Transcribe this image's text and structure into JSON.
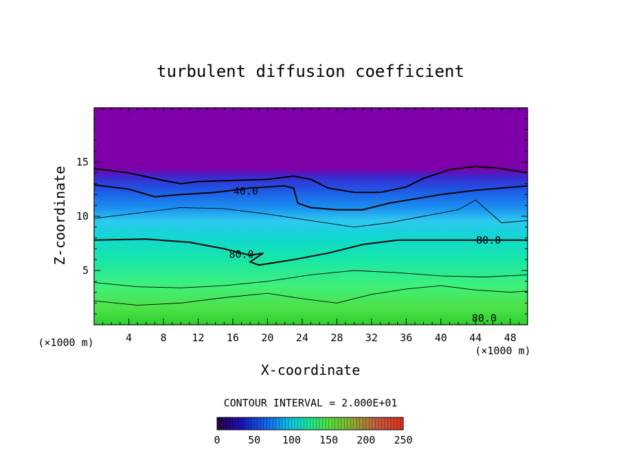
{
  "chart_data": {
    "type": "heatmap",
    "title": "turbulent diffusion coefficient",
    "xlabel": "X-coordinate",
    "ylabel": "Z-coordinate",
    "x_unit_left": "(×1000 m)",
    "x_unit_right": "(×1000 m)",
    "xlim": [
      0,
      50
    ],
    "ylim": [
      0,
      20
    ],
    "x_ticks": [
      4,
      8,
      12,
      16,
      20,
      24,
      28,
      32,
      36,
      40,
      44,
      48
    ],
    "y_ticks": [
      5,
      10,
      15
    ],
    "contour_interval_text": "CONTOUR INTERVAL = 2.000E+01",
    "contour_interval": 20,
    "contour_labels": [
      {
        "text": "40.0",
        "x": 17.5,
        "z": 12.3
      },
      {
        "text": "80.0",
        "x": 17.0,
        "z": 6.5
      },
      {
        "text": "80.0",
        "x": 45.5,
        "z": 7.8
      },
      {
        "text": "80.0",
        "x": 45.0,
        "z": 0.6
      }
    ],
    "contours": [
      {
        "level": 20,
        "bold": true,
        "points": [
          [
            0,
            14.4
          ],
          [
            4,
            14.0
          ],
          [
            8,
            13.3
          ],
          [
            10,
            13.0
          ],
          [
            12,
            13.2
          ],
          [
            16,
            13.3
          ],
          [
            20,
            13.4
          ],
          [
            23,
            13.7
          ],
          [
            25,
            13.4
          ],
          [
            27,
            12.6
          ],
          [
            30,
            12.2
          ],
          [
            33,
            12.2
          ],
          [
            36,
            12.7
          ],
          [
            38,
            13.5
          ],
          [
            41,
            14.3
          ],
          [
            44,
            14.6
          ],
          [
            47,
            14.4
          ],
          [
            50,
            14.0
          ]
        ]
      },
      {
        "level": 40,
        "bold": true,
        "points": [
          [
            0,
            12.9
          ],
          [
            4,
            12.5
          ],
          [
            7,
            11.8
          ],
          [
            10,
            12.0
          ],
          [
            14,
            12.2
          ],
          [
            18,
            12.6
          ],
          [
            22,
            12.8
          ],
          [
            23,
            12.6
          ],
          [
            23.5,
            11.2
          ],
          [
            25,
            10.8
          ],
          [
            28,
            10.6
          ],
          [
            31,
            10.6
          ],
          [
            34,
            11.2
          ],
          [
            37,
            11.6
          ],
          [
            40,
            12.0
          ],
          [
            44,
            12.4
          ],
          [
            47,
            12.6
          ],
          [
            50,
            12.8
          ]
        ]
      },
      {
        "level": 60,
        "bold": false,
        "points": [
          [
            0,
            9.8
          ],
          [
            5,
            10.3
          ],
          [
            10,
            10.8
          ],
          [
            15,
            10.7
          ],
          [
            20,
            10.2
          ],
          [
            25,
            9.6
          ],
          [
            30,
            9.0
          ],
          [
            34,
            9.4
          ],
          [
            38,
            10.0
          ],
          [
            42,
            10.6
          ],
          [
            44,
            11.5
          ],
          [
            45,
            10.8
          ],
          [
            47,
            9.4
          ],
          [
            50,
            9.6
          ]
        ]
      },
      {
        "level": 80,
        "bold": true,
        "points": [
          [
            0,
            7.8
          ],
          [
            6,
            7.9
          ],
          [
            11,
            7.6
          ],
          [
            15,
            7.0
          ],
          [
            18,
            6.4
          ],
          [
            19.5,
            6.6
          ],
          [
            18,
            5.8
          ],
          [
            19,
            5.5
          ],
          [
            23,
            6.0
          ],
          [
            27,
            6.6
          ],
          [
            31,
            7.4
          ],
          [
            35,
            7.8
          ],
          [
            40,
            7.8
          ],
          [
            45,
            7.8
          ],
          [
            50,
            7.8
          ]
        ]
      },
      {
        "level": 100,
        "bold": false,
        "points": [
          [
            0,
            3.9
          ],
          [
            5,
            3.5
          ],
          [
            10,
            3.4
          ],
          [
            15,
            3.6
          ],
          [
            20,
            4.0
          ],
          [
            25,
            4.6
          ],
          [
            30,
            5.0
          ],
          [
            35,
            4.8
          ],
          [
            40,
            4.5
          ],
          [
            45,
            4.4
          ],
          [
            50,
            4.6
          ]
        ]
      },
      {
        "level": 120,
        "bold": false,
        "points": [
          [
            0,
            2.2
          ],
          [
            5,
            1.8
          ],
          [
            10,
            2.0
          ],
          [
            15,
            2.5
          ],
          [
            20,
            2.9
          ],
          [
            24,
            2.4
          ],
          [
            28,
            2.0
          ],
          [
            32,
            2.8
          ],
          [
            36,
            3.3
          ],
          [
            40,
            3.6
          ],
          [
            44,
            3.2
          ],
          [
            48,
            3.0
          ],
          [
            50,
            3.1
          ]
        ]
      }
    ],
    "colorbar": {
      "ticks": [
        "0",
        "50",
        "100",
        "150",
        "200",
        "250"
      ],
      "range": [
        0,
        250
      ]
    }
  }
}
